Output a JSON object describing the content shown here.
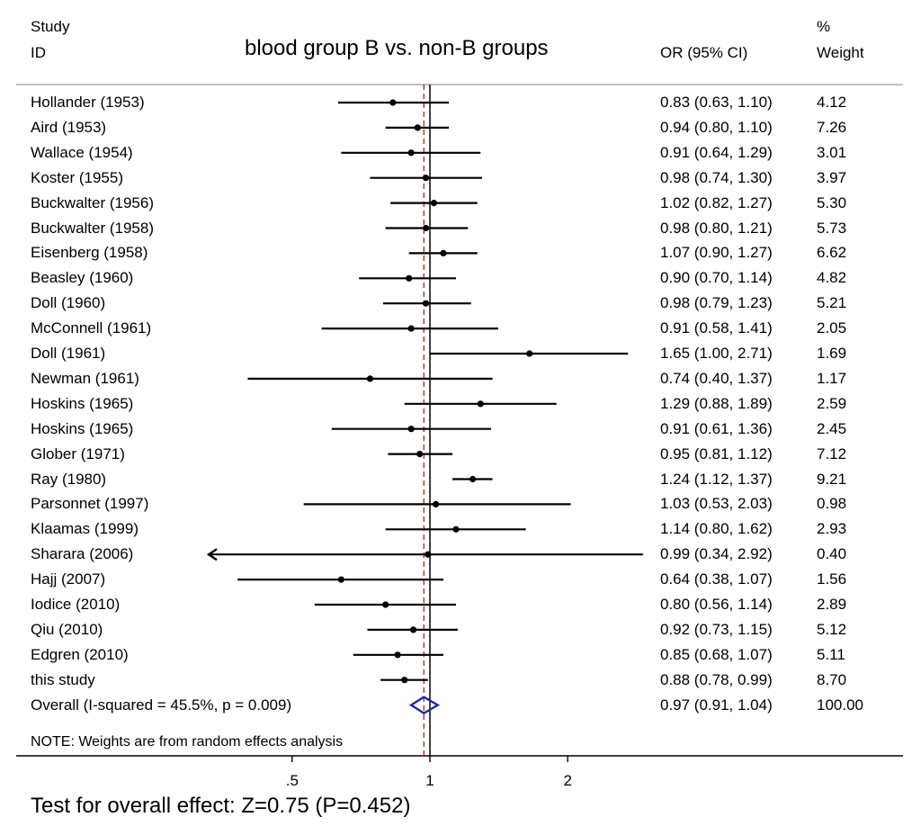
{
  "header": {
    "study_line1": "Study",
    "study_line2": "ID",
    "or_label": "OR (95% CI)",
    "weight_line1": "%",
    "weight_line2": "Weight"
  },
  "colors": {
    "ink": "#000000",
    "reference_line": "#b02020",
    "overall_diamond": "#1a2a9a",
    "rule": "#9a9a9a"
  },
  "note": "NOTE: Weights are from random effects analysis",
  "footer": "Test for overall effect: Z=0.75 (P=0.452)",
  "chart_data": {
    "type": "forest",
    "title": "blood group B vs. non-B groups",
    "x_scale": "log",
    "xlim": [
      0.34,
      2.92
    ],
    "xticks": [
      {
        "value": 0.5,
        "label": ".5"
      },
      {
        "value": 1,
        "label": "1"
      },
      {
        "value": 2,
        "label": "2"
      }
    ],
    "null_line": 1,
    "pooled_line": 0.97,
    "studies": [
      {
        "name": "Hollander  (1953)",
        "or": 0.83,
        "lo": 0.63,
        "hi": 1.1,
        "ci_text": "0.83 (0.63, 1.10)",
        "weight": "4.12"
      },
      {
        "name": "Aird (1953)",
        "or": 0.94,
        "lo": 0.8,
        "hi": 1.1,
        "ci_text": "0.94 (0.80, 1.10)",
        "weight": "7.26"
      },
      {
        "name": "Wallace (1954)",
        "or": 0.91,
        "lo": 0.64,
        "hi": 1.29,
        "ci_text": "0.91 (0.64, 1.29)",
        "weight": "3.01"
      },
      {
        "name": "Koster (1955)",
        "or": 0.98,
        "lo": 0.74,
        "hi": 1.3,
        "ci_text": "0.98 (0.74, 1.30)",
        "weight": "3.97"
      },
      {
        "name": "Buckwalter (1956)",
        "or": 1.02,
        "lo": 0.82,
        "hi": 1.27,
        "ci_text": "1.02 (0.82, 1.27)",
        "weight": "5.30"
      },
      {
        "name": "Buckwalter (1958)",
        "or": 0.98,
        "lo": 0.8,
        "hi": 1.21,
        "ci_text": "0.98 (0.80, 1.21)",
        "weight": "5.73"
      },
      {
        "name": "Eisenberg (1958)",
        "or": 1.07,
        "lo": 0.9,
        "hi": 1.27,
        "ci_text": "1.07 (0.90, 1.27)",
        "weight": "6.62"
      },
      {
        "name": "Beasley  (1960)",
        "or": 0.9,
        "lo": 0.7,
        "hi": 1.14,
        "ci_text": "0.90 (0.70, 1.14)",
        "weight": "4.82"
      },
      {
        "name": "Doll  (1960)",
        "or": 0.98,
        "lo": 0.79,
        "hi": 1.23,
        "ci_text": "0.98 (0.79, 1.23)",
        "weight": "5.21"
      },
      {
        "name": "McConnell  (1961)",
        "or": 0.91,
        "lo": 0.58,
        "hi": 1.41,
        "ci_text": "0.91 (0.58, 1.41)",
        "weight": "2.05"
      },
      {
        "name": "Doll  (1961)",
        "or": 1.65,
        "lo": 1.0,
        "hi": 2.71,
        "ci_text": "1.65 (1.00, 2.71)",
        "weight": "1.69"
      },
      {
        "name": "Newman  (1961)",
        "or": 0.74,
        "lo": 0.4,
        "hi": 1.37,
        "ci_text": "0.74 (0.40, 1.37)",
        "weight": "1.17"
      },
      {
        "name": "Hoskins (1965)",
        "or": 1.29,
        "lo": 0.88,
        "hi": 1.89,
        "ci_text": "1.29 (0.88, 1.89)",
        "weight": "2.59"
      },
      {
        "name": "Hoskins  (1965)",
        "or": 0.91,
        "lo": 0.61,
        "hi": 1.36,
        "ci_text": "0.91 (0.61, 1.36)",
        "weight": "2.45"
      },
      {
        "name": "Glober (1971)",
        "or": 0.95,
        "lo": 0.81,
        "hi": 1.12,
        "ci_text": "0.95 (0.81, 1.12)",
        "weight": "7.12"
      },
      {
        "name": "Ray  (1980)",
        "or": 1.24,
        "lo": 1.12,
        "hi": 1.37,
        "ci_text": "1.24 (1.12, 1.37)",
        "weight": "9.21"
      },
      {
        "name": "Parsonnet  (1997)",
        "or": 1.03,
        "lo": 0.53,
        "hi": 2.03,
        "ci_text": "1.03 (0.53, 2.03)",
        "weight": "0.98"
      },
      {
        "name": "Klaamas  (1999)",
        "or": 1.14,
        "lo": 0.8,
        "hi": 1.62,
        "ci_text": "1.14 (0.80, 1.62)",
        "weight": "2.93"
      },
      {
        "name": "Sharara  (2006)",
        "or": 0.99,
        "lo": 0.34,
        "hi": 2.92,
        "ci_text": "0.99 (0.34, 2.92)",
        "weight": "0.40",
        "truncated_left": true
      },
      {
        "name": "Hajj (2007)",
        "or": 0.64,
        "lo": 0.38,
        "hi": 1.07,
        "ci_text": "0.64 (0.38, 1.07)",
        "weight": "1.56"
      },
      {
        "name": "Iodice  (2010)",
        "or": 0.8,
        "lo": 0.56,
        "hi": 1.14,
        "ci_text": "0.80 (0.56, 1.14)",
        "weight": "2.89"
      },
      {
        "name": "Qiu (2010)",
        "or": 0.92,
        "lo": 0.73,
        "hi": 1.15,
        "ci_text": "0.92 (0.73, 1.15)",
        "weight": "5.12"
      },
      {
        "name": "Edgren  (2010)",
        "or": 0.85,
        "lo": 0.68,
        "hi": 1.07,
        "ci_text": "0.85 (0.68, 1.07)",
        "weight": "5.11"
      },
      {
        "name": "this study",
        "or": 0.88,
        "lo": 0.78,
        "hi": 0.99,
        "ci_text": "0.88 (0.78, 0.99)",
        "weight": "8.70"
      }
    ],
    "overall": {
      "name": "Overall  (I-squared = 45.5%, p = 0.009)",
      "or": 0.97,
      "lo": 0.91,
      "hi": 1.04,
      "ci_text": "0.97 (0.91, 1.04)",
      "weight": "100.00"
    }
  }
}
